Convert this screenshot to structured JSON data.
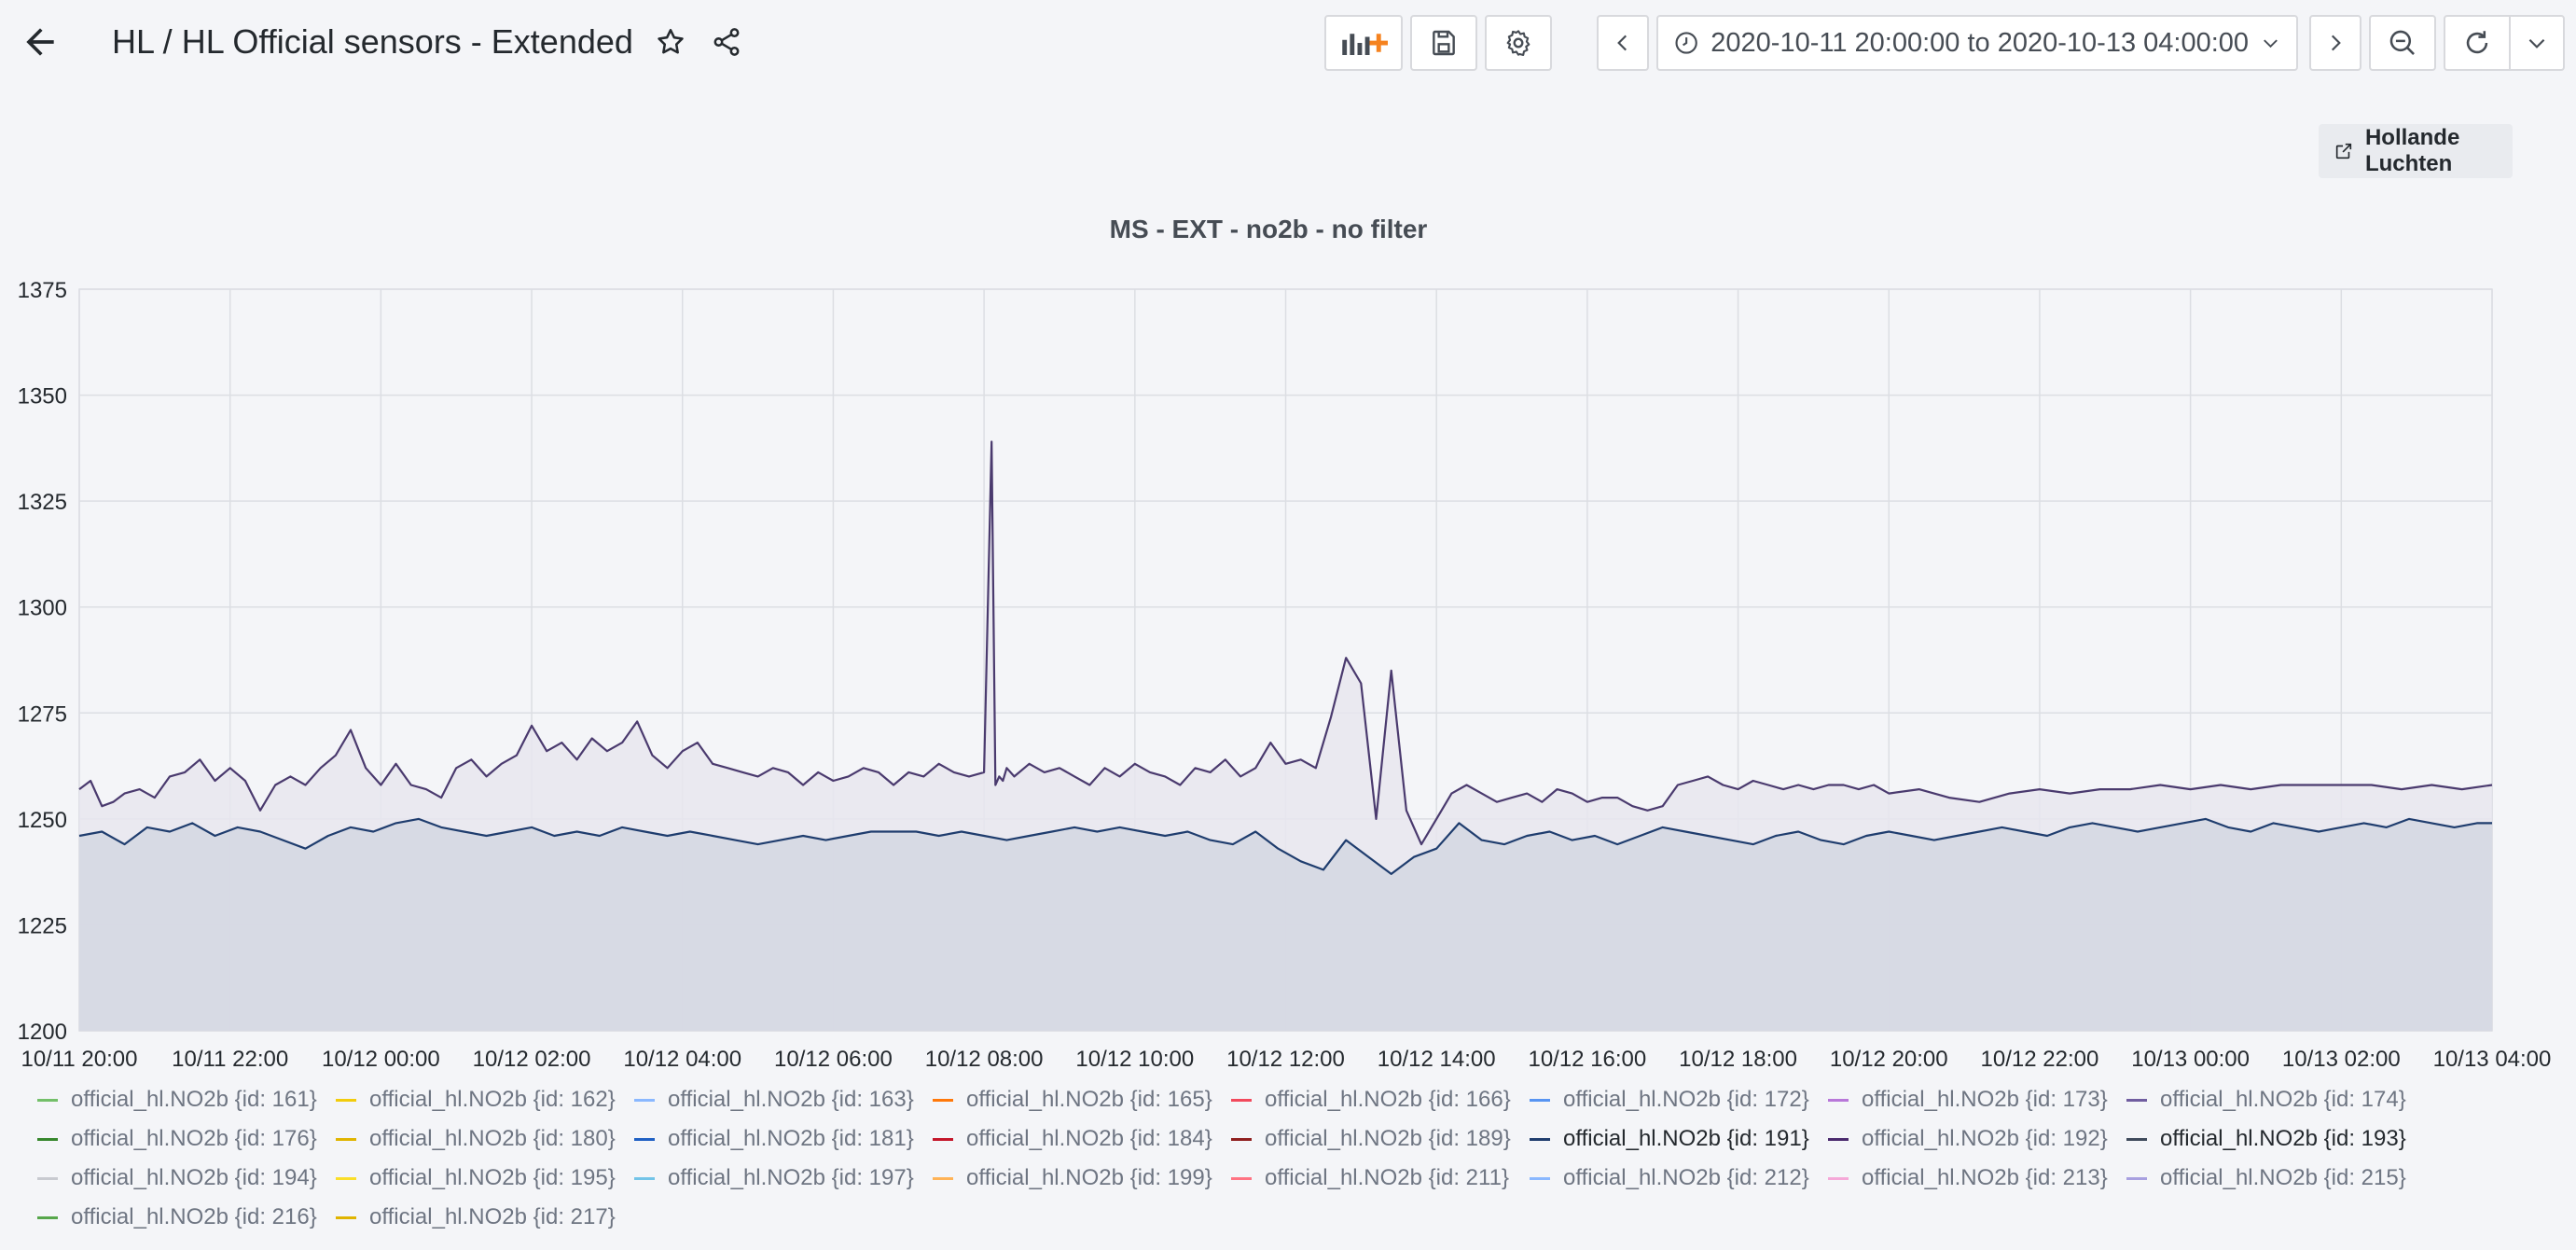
{
  "header": {
    "title": "HL / HL Official sensors - Extended",
    "time_range": "2020-10-11 20:00:00 to 2020-10-13 04:00:00"
  },
  "panel": {
    "link_label": "Hollande Luchten",
    "title": "MS - EXT - no2b - no filter"
  },
  "colors": {
    "line_upper": "#4a3a6e",
    "fill_upper": "#e8e6ee",
    "line_lower": "#1f3d6e",
    "fill_lower": "#d3d7e2",
    "grid": "#dcdee3"
  },
  "chart_data": {
    "type": "area",
    "title": "MS - EXT - no2b - no filter",
    "xlabel": "",
    "ylabel": "",
    "x_ticks": [
      "10/11 20:00",
      "10/11 22:00",
      "10/12 00:00",
      "10/12 02:00",
      "10/12 04:00",
      "10/12 06:00",
      "10/12 08:00",
      "10/12 10:00",
      "10/12 12:00",
      "10/12 14:00",
      "10/12 16:00",
      "10/12 18:00",
      "10/12 20:00",
      "10/12 22:00",
      "10/13 00:00",
      "10/13 02:00",
      "10/13 04:00"
    ],
    "y_ticks": [
      1200,
      1225,
      1250,
      1275,
      1300,
      1325,
      1350,
      1375
    ],
    "ylim": [
      1200,
      1375
    ],
    "x_range_hours": [
      0,
      32
    ],
    "grid": true,
    "legend_position": "bottom",
    "series": [
      {
        "name": "official_hl.NO2b {id: 192}",
        "x": [
          0,
          0.15,
          0.3,
          0.45,
          0.6,
          0.8,
          1.0,
          1.2,
          1.4,
          1.6,
          1.8,
          2.0,
          2.2,
          2.4,
          2.6,
          2.8,
          3.0,
          3.2,
          3.4,
          3.6,
          3.8,
          4.0,
          4.2,
          4.4,
          4.6,
          4.8,
          5.0,
          5.2,
          5.4,
          5.6,
          5.8,
          6.0,
          6.2,
          6.4,
          6.6,
          6.8,
          7.0,
          7.2,
          7.4,
          7.6,
          7.8,
          8.0,
          8.2,
          8.4,
          8.6,
          8.8,
          9.0,
          9.2,
          9.4,
          9.6,
          9.8,
          10.0,
          10.2,
          10.4,
          10.6,
          10.8,
          11.0,
          11.2,
          11.4,
          11.6,
          11.8,
          12.0,
          12.1,
          12.15,
          12.2,
          12.25,
          12.3,
          12.4,
          12.6,
          12.8,
          13.0,
          13.2,
          13.4,
          13.6,
          13.8,
          14.0,
          14.2,
          14.4,
          14.6,
          14.8,
          15.0,
          15.2,
          15.4,
          15.6,
          15.8,
          16.0,
          16.2,
          16.4,
          16.6,
          16.8,
          17.0,
          17.2,
          17.4,
          17.6,
          17.8,
          18.0,
          18.2,
          18.4,
          18.6,
          18.8,
          19.0,
          19.2,
          19.4,
          19.6,
          19.8,
          20.0,
          20.2,
          20.4,
          20.6,
          20.8,
          21.0,
          21.2,
          21.4,
          21.6,
          21.8,
          22.0,
          22.2,
          22.4,
          22.6,
          22.8,
          23.0,
          23.2,
          23.4,
          23.6,
          23.8,
          24.0,
          24.4,
          24.8,
          25.2,
          25.6,
          26.0,
          26.4,
          26.8,
          27.2,
          27.6,
          28.0,
          28.4,
          28.8,
          29.2,
          29.6,
          30.0,
          30.4,
          30.8,
          31.2,
          31.6,
          32.0
        ],
        "values": [
          1257,
          1259,
          1253,
          1254,
          1256,
          1257,
          1255,
          1260,
          1261,
          1264,
          1259,
          1262,
          1259,
          1252,
          1258,
          1260,
          1258,
          1262,
          1265,
          1271,
          1262,
          1258,
          1263,
          1258,
          1257,
          1255,
          1262,
          1264,
          1260,
          1263,
          1265,
          1272,
          1266,
          1268,
          1264,
          1269,
          1266,
          1268,
          1273,
          1265,
          1262,
          1266,
          1268,
          1263,
          1262,
          1261,
          1260,
          1262,
          1261,
          1258,
          1261,
          1259,
          1260,
          1262,
          1261,
          1258,
          1261,
          1260,
          1263,
          1261,
          1260,
          1261,
          1339,
          1258,
          1260,
          1259,
          1262,
          1260,
          1263,
          1261,
          1262,
          1260,
          1258,
          1262,
          1260,
          1263,
          1261,
          1260,
          1258,
          1262,
          1261,
          1264,
          1260,
          1262,
          1268,
          1263,
          1264,
          1262,
          1274,
          1288,
          1282,
          1250,
          1285,
          1252,
          1244,
          1250,
          1256,
          1258,
          1256,
          1254,
          1255,
          1256,
          1254,
          1257,
          1256,
          1254,
          1255,
          1255,
          1253,
          1252,
          1253,
          1258,
          1259,
          1260,
          1258,
          1257,
          1259,
          1258,
          1257,
          1258,
          1257,
          1258,
          1258,
          1257,
          1258,
          1256,
          1257,
          1255,
          1254,
          1256,
          1257,
          1256,
          1257,
          1257,
          1258,
          1257,
          1258,
          1257,
          1258,
          1258,
          1258,
          1258,
          1257,
          1258,
          1257,
          1258
        ]
      },
      {
        "name": "official_hl.NO2b {id: 191}",
        "x": [
          0,
          0.3,
          0.6,
          0.9,
          1.2,
          1.5,
          1.8,
          2.1,
          2.4,
          2.7,
          3.0,
          3.3,
          3.6,
          3.9,
          4.2,
          4.5,
          4.8,
          5.1,
          5.4,
          5.7,
          6.0,
          6.3,
          6.6,
          6.9,
          7.2,
          7.5,
          7.8,
          8.1,
          8.4,
          8.7,
          9.0,
          9.3,
          9.6,
          9.9,
          10.2,
          10.5,
          10.8,
          11.1,
          11.4,
          11.7,
          12.0,
          12.3,
          12.6,
          12.9,
          13.2,
          13.5,
          13.8,
          14.1,
          14.4,
          14.7,
          15.0,
          15.3,
          15.6,
          15.9,
          16.2,
          16.5,
          16.8,
          17.1,
          17.4,
          17.7,
          18.0,
          18.3,
          18.6,
          18.9,
          19.2,
          19.5,
          19.8,
          20.1,
          20.4,
          20.7,
          21.0,
          21.3,
          21.6,
          21.9,
          22.2,
          22.5,
          22.8,
          23.1,
          23.4,
          23.7,
          24.0,
          24.3,
          24.6,
          24.9,
          25.2,
          25.5,
          25.8,
          26.1,
          26.4,
          26.7,
          27.0,
          27.3,
          27.6,
          27.9,
          28.2,
          28.5,
          28.8,
          29.1,
          29.4,
          29.7,
          30.0,
          30.3,
          30.6,
          30.9,
          31.2,
          31.5,
          31.8,
          32.0
        ],
        "values": [
          1246,
          1247,
          1244,
          1248,
          1247,
          1249,
          1246,
          1248,
          1247,
          1245,
          1243,
          1246,
          1248,
          1247,
          1249,
          1250,
          1248,
          1247,
          1246,
          1247,
          1248,
          1246,
          1247,
          1246,
          1248,
          1247,
          1246,
          1247,
          1246,
          1245,
          1244,
          1245,
          1246,
          1245,
          1246,
          1247,
          1247,
          1247,
          1246,
          1247,
          1246,
          1245,
          1246,
          1247,
          1248,
          1247,
          1248,
          1247,
          1246,
          1247,
          1245,
          1244,
          1247,
          1243,
          1240,
          1238,
          1245,
          1241,
          1237,
          1241,
          1243,
          1249,
          1245,
          1244,
          1246,
          1247,
          1245,
          1246,
          1244,
          1246,
          1248,
          1247,
          1246,
          1245,
          1244,
          1246,
          1247,
          1245,
          1244,
          1246,
          1247,
          1246,
          1245,
          1246,
          1247,
          1248,
          1247,
          1246,
          1248,
          1249,
          1248,
          1247,
          1248,
          1249,
          1250,
          1248,
          1247,
          1249,
          1248,
          1247,
          1248,
          1249,
          1248,
          1250,
          1249,
          1248,
          1249,
          1249
        ]
      }
    ]
  },
  "legend": [
    {
      "label": "official_hl.NO2b {id: 161}",
      "color": "#73bf69"
    },
    {
      "label": "official_hl.NO2b {id: 162}",
      "color": "#f2cc0c"
    },
    {
      "label": "official_hl.NO2b {id: 163}",
      "color": "#8ab8ff"
    },
    {
      "label": "official_hl.NO2b {id: 165}",
      "color": "#ff780a"
    },
    {
      "label": "official_hl.NO2b {id: 166}",
      "color": "#f2495c"
    },
    {
      "label": "official_hl.NO2b {id: 172}",
      "color": "#5794f2"
    },
    {
      "label": "official_hl.NO2b {id: 173}",
      "color": "#b877d9"
    },
    {
      "label": "official_hl.NO2b {id: 174}",
      "color": "#705da0"
    },
    {
      "label": "official_hl.NO2b {id: 176}",
      "color": "#37872d"
    },
    {
      "label": "official_hl.NO2b {id: 180}",
      "color": "#e0b400"
    },
    {
      "label": "official_hl.NO2b {id: 181}",
      "color": "#1f60c4"
    },
    {
      "label": "official_hl.NO2b {id: 184}",
      "color": "#c4162a"
    },
    {
      "label": "official_hl.NO2b {id: 189}",
      "color": "#8f1f1f"
    },
    {
      "label": "official_hl.NO2b {id: 191}",
      "color": "#1f3d6e",
      "active": true
    },
    {
      "label": "official_hl.NO2b {id: 192}",
      "color": "#4a2a6e"
    },
    {
      "label": "official_hl.NO2b {id: 193}",
      "color": "#3f4a5c",
      "active": true
    },
    {
      "label": "official_hl.NO2b {id: 194}",
      "color": "#c8cad0"
    },
    {
      "label": "official_hl.NO2b {id: 195}",
      "color": "#fade2a"
    },
    {
      "label": "official_hl.NO2b {id: 197}",
      "color": "#73c4e8"
    },
    {
      "label": "official_hl.NO2b {id: 199}",
      "color": "#ffb357"
    },
    {
      "label": "official_hl.NO2b {id: 211}",
      "color": "#ff7383"
    },
    {
      "label": "official_hl.NO2b {id: 212}",
      "color": "#8ab8ff"
    },
    {
      "label": "official_hl.NO2b {id: 213}",
      "color": "#f5a8d8"
    },
    {
      "label": "official_hl.NO2b {id: 215}",
      "color": "#a8a0e0"
    },
    {
      "label": "official_hl.NO2b {id: 216}",
      "color": "#56a64b"
    },
    {
      "label": "official_hl.NO2b {id: 217}",
      "color": "#e0b400"
    }
  ],
  "icons": {
    "back": "arrow-left-icon",
    "star": "star-icon",
    "share": "share-icon",
    "add_panel": "add-panel-icon",
    "save": "save-icon",
    "settings": "gear-icon",
    "prev": "chevron-left-icon",
    "clock": "clock-icon",
    "dropdown": "chevron-down-icon",
    "next": "chevron-right-icon",
    "zoom_out": "zoom-out-icon",
    "refresh": "refresh-icon",
    "external": "external-link-icon"
  }
}
